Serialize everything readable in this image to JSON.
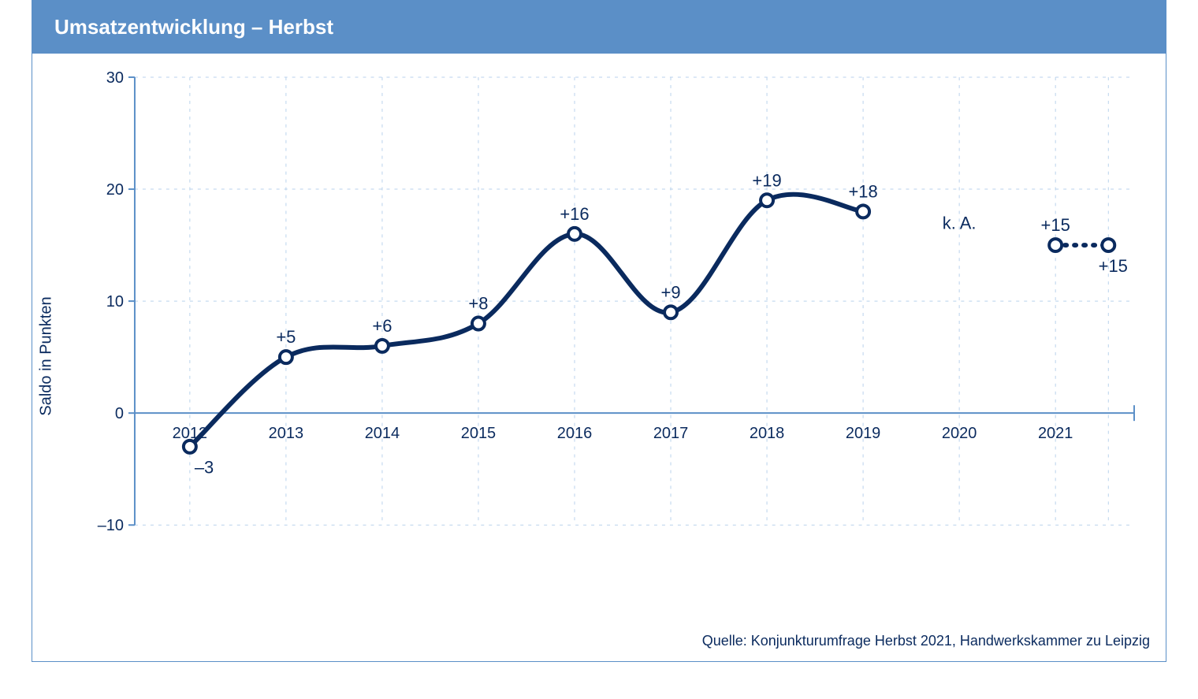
{
  "header": {
    "title": "Umsatzentwicklung – Herbst"
  },
  "chart": {
    "type": "line",
    "y_axis_label": "Saldo in Punkten",
    "ylim": [
      -10,
      30
    ],
    "ytick_step": 10,
    "yticks": [
      -10,
      0,
      10,
      20,
      30
    ],
    "x_categories": [
      "2012",
      "2013",
      "2014",
      "2015",
      "2016",
      "2017",
      "2018",
      "2019",
      "2020",
      "2021"
    ],
    "series_main": {
      "x": [
        "2012",
        "2013",
        "2014",
        "2015",
        "2016",
        "2017",
        "2018",
        "2019"
      ],
      "y": [
        -3,
        5,
        6,
        8,
        16,
        9,
        19,
        18
      ],
      "labels": [
        "–3",
        "+5",
        "+6",
        "+8",
        "+16",
        "+9",
        "+19",
        "+18"
      ],
      "label_pos": [
        "below",
        "above",
        "above",
        "above",
        "above",
        "above",
        "above",
        "above"
      ],
      "line_color": "#0a2a5e",
      "line_width": 6,
      "marker_fill": "#ffffff",
      "marker_stroke": "#0a2a5e",
      "marker_radius": 8,
      "marker_stroke_width": 4
    },
    "gap_2020": {
      "label": "k. A."
    },
    "series_forecast": {
      "x0": "2021",
      "y0": 15,
      "y1": 15,
      "label0": "+15",
      "label1": "+15",
      "line_color": "#0a2a5e",
      "dash": "2 10",
      "line_width": 6,
      "marker_fill": "#ffffff",
      "marker_stroke": "#0a2a5e",
      "marker_radius": 8,
      "marker_stroke_width": 4
    },
    "colors": {
      "background": "#ffffff",
      "header_bg": "#5b8fc7",
      "header_text": "#ffffff",
      "axis_line": "#5b8fc7",
      "grid_line": "#b9d2ec",
      "text": "#0a2a5e",
      "zero_line": "#5b8fc7"
    },
    "fonts": {
      "title_size": 26,
      "axis_label_size": 20,
      "tick_size": 20,
      "data_label_size": 22,
      "source_size": 18
    }
  },
  "source": {
    "text": "Quelle: Konjunkturumfrage Herbst 2021, Handwerkskammer zu Leipzig"
  }
}
